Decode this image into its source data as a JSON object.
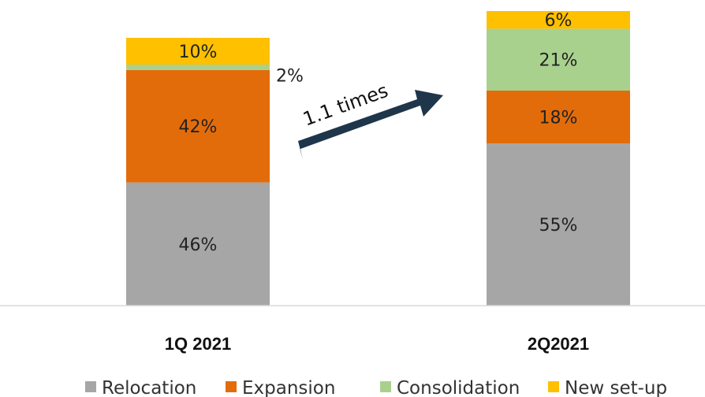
{
  "chart_data": {
    "type": "bar",
    "stacked": true,
    "categories": [
      "1Q 2021",
      "2Q2021"
    ],
    "series": [
      {
        "name": "Relocation",
        "values": [
          46,
          55
        ],
        "labels": [
          "46%",
          "55%"
        ],
        "color": "#a6a6a6"
      },
      {
        "name": "Expansion",
        "values": [
          42,
          18
        ],
        "labels": [
          "42%",
          "18%"
        ],
        "color": "#e36c0a"
      },
      {
        "name": "Consolidation",
        "values": [
          2,
          21
        ],
        "labels": [
          "2%",
          "21%"
        ],
        "color": "#a9d18e"
      },
      {
        "name": "New set-up",
        "values": [
          10,
          6
        ],
        "labels": [
          "10%",
          "6%"
        ],
        "color": "#ffc000"
      }
    ],
    "bar_totals_relative": [
      1.0,
      1.1
    ],
    "annotation": {
      "text": "1.1 times",
      "arrow_color": "#1f3549"
    },
    "legend_position": "bottom",
    "grid": false
  }
}
